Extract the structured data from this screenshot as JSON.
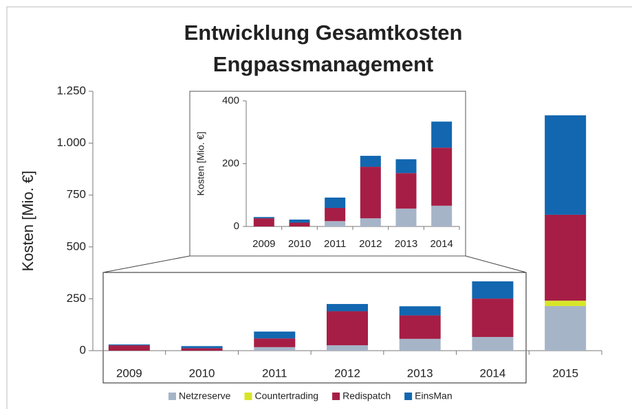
{
  "chart_data": [
    {
      "type": "bar",
      "stacked": true,
      "title": "Entwicklung Gesamtkosten",
      "subtitle": "Engpassmanagement",
      "ylabel": "Kosten [Mio. €]",
      "categories": [
        "2009",
        "2010",
        "2011",
        "2012",
        "2013",
        "2014",
        "2015"
      ],
      "series": [
        {
          "name": "Netzreserve",
          "color": "#a6b4c8",
          "values": [
            0,
            0,
            17,
            26,
            57,
            66,
            215
          ]
        },
        {
          "name": "Countertrading",
          "color": "#d7e52a",
          "values": [
            0,
            0,
            0,
            0,
            0,
            0,
            26
          ]
        },
        {
          "name": "Redispatch",
          "color": "#a61e45",
          "values": [
            26,
            12,
            42,
            164,
            113,
            185,
            414
          ]
        },
        {
          "name": "EinsMan",
          "color": "#1267b0",
          "values": [
            4,
            10,
            33,
            35,
            44,
            83,
            479
          ]
        }
      ],
      "ylim": [
        0,
        1250
      ],
      "yticks": [
        0,
        250,
        500,
        750,
        {
          "value": 1000,
          "label": "1.000"
        },
        {
          "value": 1250,
          "label": "1.250"
        }
      ],
      "legend": "bottom"
    },
    {
      "type": "bar",
      "stacked": true,
      "ylabel": "Kosten [Mio. €]",
      "categories": [
        "2009",
        "2010",
        "2011",
        "2012",
        "2013",
        "2014"
      ],
      "series": [
        {
          "color": "#a6b4c8",
          "values": [
            0,
            0,
            17,
            26,
            57,
            66
          ]
        },
        {
          "color": "#d7e52a",
          "values": [
            0,
            0,
            0,
            0,
            0,
            0
          ]
        },
        {
          "color": "#a61e45",
          "values": [
            26,
            12,
            42,
            164,
            113,
            185
          ]
        },
        {
          "color": "#1267b0",
          "values": [
            4,
            10,
            33,
            35,
            44,
            83
          ]
        }
      ],
      "ylim": [
        0,
        400
      ],
      "yticks": [
        0,
        200,
        400
      ]
    }
  ]
}
